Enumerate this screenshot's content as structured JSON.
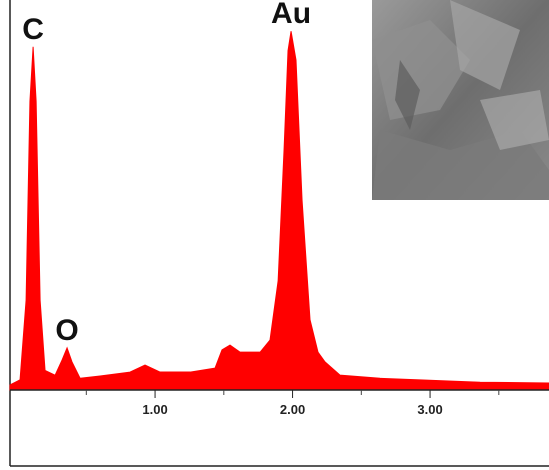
{
  "chart_data": {
    "type": "area",
    "color": "#ff0000",
    "x": [
      -0.055,
      0.018,
      0.062,
      0.09,
      0.113,
      0.135,
      0.164,
      0.2,
      0.273,
      0.324,
      0.36,
      0.396,
      0.455,
      0.6,
      0.818,
      0.927,
      1.036,
      1.255,
      1.436,
      1.487,
      1.545,
      1.618,
      1.764,
      1.836,
      1.895,
      1.938,
      1.967,
      1.989,
      2.025,
      2.069,
      2.127,
      2.185,
      2.236,
      2.345,
      2.636,
      2.927,
      3.364,
      3.865
    ],
    "values": [
      1.3,
      2.6,
      23,
      74,
      88,
      74,
      23,
      5,
      3.8,
      7.7,
      10.8,
      7.2,
      3,
      3.6,
      4.6,
      6.4,
      4.6,
      4.6,
      5.6,
      10.3,
      11.5,
      9.7,
      9.7,
      12.8,
      28,
      61.5,
      87,
      92,
      84.6,
      48.7,
      18,
      9.7,
      7.2,
      3.8,
      3,
      2.6,
      2,
      1.8
    ],
    "xlim": [
      -0.055,
      3.865
    ],
    "ylim": [
      0,
      100
    ],
    "xticks": [
      {
        "value": 1,
        "label": "1.00"
      },
      {
        "value": 2,
        "label": "2.00"
      },
      {
        "value": 3,
        "label": "3.00"
      }
    ],
    "xminor": [
      0.5,
      1.5,
      2.5,
      3.5
    ],
    "annotations": [
      {
        "text": "C",
        "x": 0.113
      },
      {
        "text": "O",
        "x": 0.36
      },
      {
        "text": "Au",
        "x": 1.989
      }
    ]
  }
}
